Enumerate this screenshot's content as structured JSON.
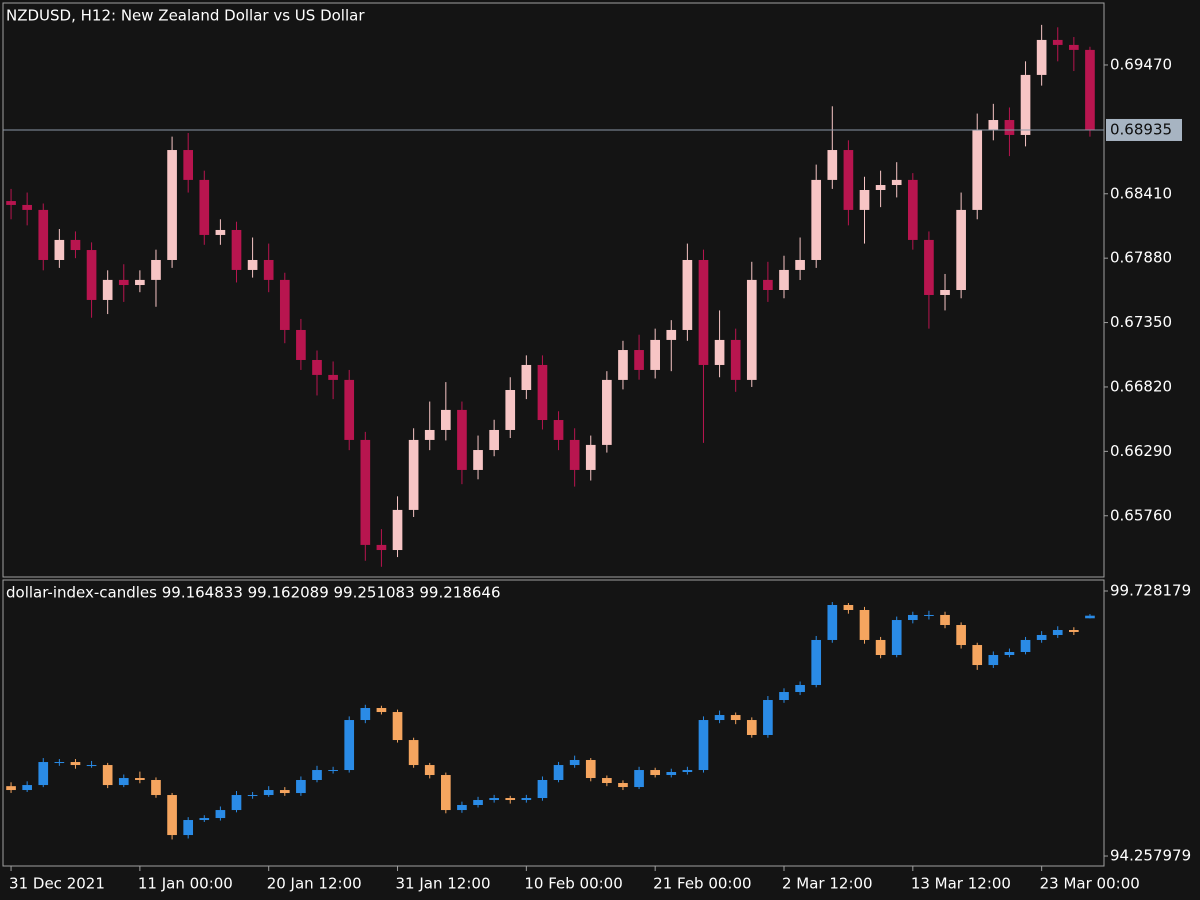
{
  "chart_data": [
    {
      "type": "candlestick",
      "title": "NZDUSD, H12:  New Zealand Dollar vs US Dollar",
      "up_color": "#f7c5c5",
      "down_color": "#b8154f",
      "ylim": [
        0.65256,
        0.6998
      ],
      "yticks": [
        {
          "value": 0.6947,
          "label": "0.69470"
        },
        {
          "value": 0.6841,
          "label": "0.68410"
        },
        {
          "value": 0.6788,
          "label": "0.67880"
        },
        {
          "value": 0.6735,
          "label": "0.67350"
        },
        {
          "value": 0.6682,
          "label": "0.66820"
        },
        {
          "value": 0.6629,
          "label": "0.66290"
        },
        {
          "value": 0.6576,
          "label": "0.65760"
        }
      ],
      "current_price": {
        "value": 0.68935,
        "label": "0.68935"
      },
      "open": [
        0.6835,
        0.68318,
        0.68277,
        0.67865,
        0.6803,
        0.67947,
        0.67536,
        0.67701,
        0.67659,
        0.67701,
        0.67865,
        0.6877,
        0.68524,
        0.68071,
        0.68112,
        0.67783,
        0.67865,
        0.67701,
        0.67289,
        0.67042,
        0.66919,
        0.66878,
        0.66384,
        0.6552,
        0.65478,
        0.65808,
        0.66384,
        0.66466,
        0.66631,
        0.66137,
        0.66301,
        0.66466,
        0.66795,
        0.67001,
        0.66548,
        0.66384,
        0.66137,
        0.66343,
        0.66878,
        0.67124,
        0.6696,
        0.67207,
        0.67289,
        0.67865,
        0.67001,
        0.67207,
        0.66878,
        0.67701,
        0.67618,
        0.67783,
        0.67865,
        0.68524,
        0.6877,
        0.68277,
        0.68441,
        0.68482,
        0.68524,
        0.6803,
        0.67577,
        0.67618,
        0.68277,
        0.68935,
        0.69017,
        0.68894,
        0.69388,
        0.69676,
        0.69635,
        0.69594
      ],
      "high": [
        0.6845,
        0.6842,
        0.6833,
        0.6812,
        0.681,
        0.6801,
        0.6778,
        0.6783,
        0.6778,
        0.6795,
        0.6888,
        0.6891,
        0.686,
        0.682,
        0.6818,
        0.6805,
        0.68,
        0.6776,
        0.6738,
        0.6712,
        0.6703,
        0.6696,
        0.6645,
        0.6565,
        0.6592,
        0.6648,
        0.667,
        0.6686,
        0.667,
        0.6642,
        0.6655,
        0.669,
        0.6708,
        0.6708,
        0.6662,
        0.6648,
        0.6642,
        0.6695,
        0.672,
        0.6725,
        0.673,
        0.6737,
        0.68,
        0.6795,
        0.6745,
        0.673,
        0.6785,
        0.6785,
        0.679,
        0.6805,
        0.6865,
        0.6913,
        0.6885,
        0.6855,
        0.686,
        0.6867,
        0.6858,
        0.681,
        0.6775,
        0.6842,
        0.6907,
        0.6915,
        0.6912,
        0.695,
        0.698,
        0.6978,
        0.697,
        0.6962
      ],
      "low": [
        0.682,
        0.6815,
        0.6778,
        0.678,
        0.6788,
        0.6739,
        0.6742,
        0.6752,
        0.676,
        0.6748,
        0.678,
        0.6842,
        0.6799,
        0.6799,
        0.6768,
        0.6772,
        0.676,
        0.6718,
        0.6696,
        0.6675,
        0.6672,
        0.663,
        0.6539,
        0.6534,
        0.6542,
        0.6575,
        0.663,
        0.6638,
        0.6602,
        0.6606,
        0.6625,
        0.664,
        0.6672,
        0.6647,
        0.663,
        0.66,
        0.6605,
        0.6628,
        0.668,
        0.6688,
        0.6689,
        0.6695,
        0.672,
        0.6636,
        0.669,
        0.6678,
        0.6682,
        0.6752,
        0.6755,
        0.677,
        0.678,
        0.6845,
        0.6815,
        0.68,
        0.683,
        0.6838,
        0.6795,
        0.673,
        0.6745,
        0.6755,
        0.682,
        0.6885,
        0.6872,
        0.688,
        0.693,
        0.695,
        0.6942,
        0.6888
      ],
      "close": [
        0.68318,
        0.68277,
        0.67865,
        0.6803,
        0.67947,
        0.67536,
        0.67701,
        0.67659,
        0.67701,
        0.67865,
        0.6877,
        0.68524,
        0.68071,
        0.68112,
        0.67783,
        0.67865,
        0.67701,
        0.67289,
        0.67042,
        0.66919,
        0.66878,
        0.66384,
        0.6552,
        0.65478,
        0.65808,
        0.66384,
        0.66466,
        0.66631,
        0.66137,
        0.66301,
        0.66466,
        0.66795,
        0.67001,
        0.66548,
        0.66384,
        0.66137,
        0.66343,
        0.66878,
        0.67124,
        0.6696,
        0.67207,
        0.67289,
        0.67865,
        0.67001,
        0.67207,
        0.66878,
        0.67701,
        0.67618,
        0.67783,
        0.67865,
        0.68524,
        0.6877,
        0.68277,
        0.68441,
        0.68482,
        0.68524,
        0.6803,
        0.67577,
        0.67618,
        0.68277,
        0.68935,
        0.69017,
        0.68894,
        0.69388,
        0.69676,
        0.69635,
        0.69594,
        0.68935
      ]
    },
    {
      "type": "candlestick",
      "title": "dollar-index-candles 99.164833 99.162089 99.251083 99.218646",
      "up_color": "#2a8be6",
      "down_color": "#f5a55f",
      "ylim": [
        94.052,
        99.955
      ],
      "yticks": [
        99.728179,
        94.257979
      ],
      "x": [
        "31 Dec 2021",
        null,
        null,
        null,
        null,
        null,
        null,
        null,
        "11 Jan 00:00",
        null,
        null,
        null,
        null,
        null,
        null,
        null,
        "20 Jan 12:00",
        null,
        null,
        null,
        null,
        null,
        null,
        null,
        "31 Jan 12:00",
        null,
        null,
        null,
        null,
        null,
        null,
        null,
        "10 Feb 00:00",
        null,
        null,
        null,
        null,
        null,
        null,
        null,
        "21 Feb 00:00",
        null,
        null,
        null,
        null,
        null,
        null,
        null,
        "2 Mar 12:00",
        null,
        null,
        null,
        null,
        null,
        null,
        null,
        "13 Mar 12:00",
        null,
        null,
        null,
        null,
        null,
        null,
        null,
        "23 Mar 00:00",
        null,
        null,
        null
      ],
      "open": [
        95.7,
        95.62,
        95.723,
        96.198,
        96.198,
        96.136,
        96.136,
        95.723,
        95.868,
        95.827,
        95.517,
        94.691,
        95.001,
        95.042,
        95.207,
        95.517,
        95.517,
        95.62,
        95.558,
        95.827,
        96.033,
        96.033,
        97.065,
        97.313,
        97.23,
        96.652,
        96.136,
        95.93,
        95.207,
        95.311,
        95.414,
        95.455,
        95.414,
        95.455,
        95.827,
        96.136,
        96.24,
        95.868,
        95.765,
        95.682,
        96.033,
        95.93,
        95.992,
        96.033,
        97.065,
        97.168,
        97.065,
        96.756,
        97.478,
        97.643,
        97.788,
        98.717,
        99.439,
        99.336,
        98.717,
        98.407,
        99.129,
        99.233,
        99.233,
        99.026,
        98.613,
        98.2,
        98.407,
        98.469,
        98.717,
        98.82,
        98.923,
        99.164833
      ],
      "high": [
        95.78,
        95.8,
        96.28,
        96.26,
        96.26,
        96.22,
        96.18,
        95.94,
        96.0,
        95.88,
        95.56,
        95.06,
        95.1,
        95.28,
        95.6,
        95.58,
        95.7,
        95.68,
        95.9,
        96.12,
        96.1,
        97.14,
        97.38,
        97.36,
        97.28,
        96.7,
        96.18,
        95.98,
        95.38,
        95.48,
        95.52,
        95.5,
        95.52,
        95.9,
        96.2,
        96.33,
        96.28,
        95.92,
        95.82,
        96.1,
        96.08,
        96.06,
        96.1,
        97.14,
        97.26,
        97.22,
        97.12,
        97.56,
        97.72,
        97.86,
        98.8,
        99.5,
        99.48,
        99.4,
        98.78,
        99.2,
        99.3,
        99.32,
        99.3,
        99.08,
        98.66,
        98.48,
        98.54,
        98.78,
        98.9,
        99.0,
        98.98,
        99.251083
      ],
      "low": [
        95.56,
        95.58,
        95.68,
        96.12,
        96.06,
        96.08,
        95.66,
        95.68,
        95.76,
        95.46,
        94.6,
        94.62,
        94.96,
        94.99,
        95.16,
        95.44,
        95.48,
        95.5,
        95.5,
        95.78,
        95.96,
        95.98,
        97.0,
        97.18,
        96.6,
        96.08,
        95.86,
        95.14,
        95.15,
        95.26,
        95.36,
        95.34,
        95.36,
        95.4,
        95.78,
        96.08,
        95.8,
        95.7,
        95.62,
        95.64,
        95.88,
        95.88,
        95.94,
        95.98,
        97.0,
        96.98,
        96.7,
        96.7,
        97.42,
        97.58,
        97.74,
        98.66,
        99.26,
        98.64,
        98.34,
        98.36,
        99.06,
        99.14,
        98.96,
        98.54,
        98.1,
        98.14,
        98.36,
        98.42,
        98.66,
        98.76,
        98.82,
        99.162089
      ],
      "close": [
        95.62,
        95.723,
        96.198,
        96.198,
        96.136,
        96.136,
        95.723,
        95.868,
        95.827,
        95.517,
        94.691,
        95.001,
        95.042,
        95.207,
        95.517,
        95.517,
        95.62,
        95.558,
        95.827,
        96.033,
        96.033,
        97.065,
        97.313,
        97.23,
        96.652,
        96.136,
        95.93,
        95.207,
        95.311,
        95.414,
        95.455,
        95.414,
        95.455,
        95.827,
        96.136,
        96.24,
        95.868,
        95.765,
        95.682,
        96.033,
        95.93,
        95.992,
        96.033,
        97.065,
        97.168,
        97.065,
        96.756,
        97.478,
        97.643,
        97.788,
        98.717,
        99.439,
        99.336,
        98.717,
        98.407,
        99.129,
        99.233,
        99.233,
        99.026,
        98.613,
        98.2,
        98.407,
        98.469,
        98.717,
        98.82,
        98.923,
        98.882,
        99.218646
      ]
    }
  ]
}
